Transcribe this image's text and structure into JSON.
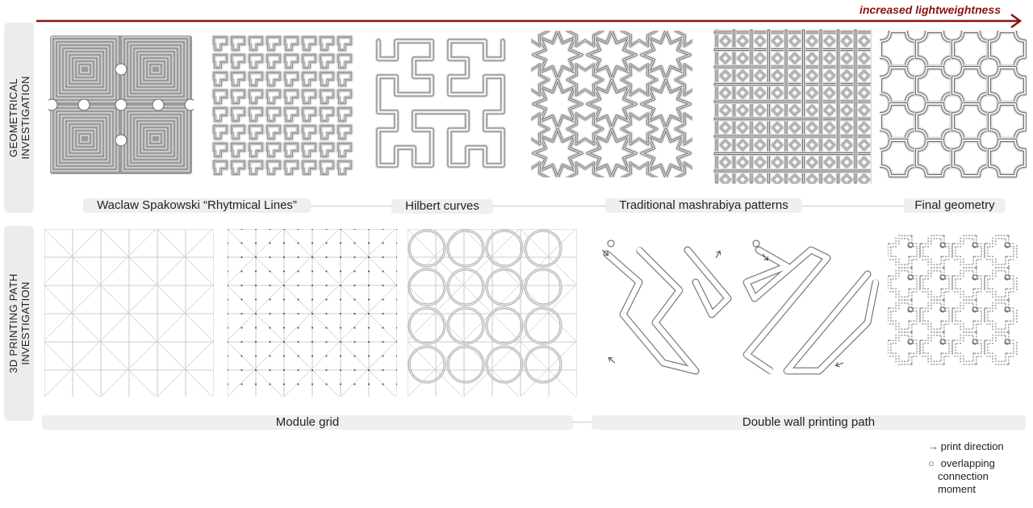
{
  "arrow": {
    "label": "increased lightweightness",
    "color": "#8b1212"
  },
  "rows": {
    "geometrical": {
      "line1": "GEOMETRICAL",
      "line2": "INVESTIGATION"
    },
    "printing": {
      "line1": "3D PRINTING PATH",
      "line2": "INVESTIGATION"
    }
  },
  "labels": {
    "spakowski": "Waclaw Spakowski “Rhytmical Lines”",
    "hilbert": "Hilbert curves",
    "mashrabiya": "Traditional mashrabiya patterns",
    "final": "Final geometry",
    "module_grid": "Module grid",
    "double_wall": "Double wall printing path"
  },
  "legend": {
    "print_direction": "print direction",
    "overlap_1": "overlapping",
    "overlap_2": "connection",
    "overlap_3": "moment"
  }
}
